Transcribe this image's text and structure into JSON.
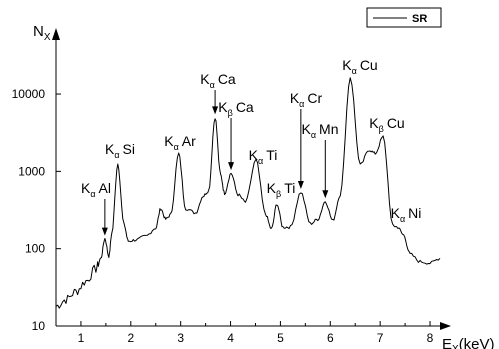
{
  "chart_data": {
    "type": "line",
    "xlabel": {
      "main": "E",
      "sub": "X",
      "unit": "(keV)"
    },
    "ylabel": {
      "main": "N",
      "sub": "X"
    },
    "xlim": [
      0.5,
      8.2
    ],
    "ylim": [
      10,
      50000
    ],
    "yscale": "log",
    "x_ticks": [
      1,
      2,
      3,
      4,
      5,
      6,
      7,
      8
    ],
    "y_ticks": [
      10,
      100,
      1000,
      10000
    ],
    "grid": false,
    "legend": {
      "position": "top-right"
    },
    "series": [
      {
        "name": "SR",
        "color": "#000000",
        "x": [
          0.5,
          0.7,
          0.9,
          1.1,
          1.3,
          1.4,
          1.48,
          1.56,
          1.62,
          1.74,
          1.86,
          1.95,
          2.1,
          2.3,
          2.5,
          2.6,
          2.7,
          2.8,
          2.96,
          3.1,
          3.3,
          3.45,
          3.56,
          3.69,
          3.8,
          3.88,
          4.01,
          4.15,
          4.3,
          4.51,
          4.7,
          4.82,
          4.93,
          5.05,
          5.2,
          5.41,
          5.6,
          5.75,
          5.9,
          6.05,
          6.2,
          6.4,
          6.6,
          6.78,
          6.9,
          7.06,
          7.25,
          7.35,
          7.47,
          7.6,
          7.8,
          8.0,
          8.2
        ],
        "y": [
          18,
          22,
          28,
          38,
          55,
          75,
          135,
          80,
          160,
          1250,
          210,
          125,
          130,
          145,
          185,
          330,
          240,
          275,
          1700,
          330,
          290,
          480,
          560,
          5000,
          900,
          520,
          950,
          500,
          400,
          1400,
          280,
          180,
          380,
          190,
          190,
          540,
          210,
          240,
          410,
          230,
          500,
          16500,
          1200,
          1900,
          1700,
          2800,
          200,
          190,
          150,
          85,
          68,
          65,
          75
        ]
      }
    ],
    "annotations": [
      {
        "main": "K",
        "sub": "α",
        "elem": "Al",
        "x": 1.48,
        "y": 135,
        "arrow": true
      },
      {
        "main": "K",
        "sub": "α",
        "elem": "Si",
        "x": 1.74,
        "y": 1250,
        "arrow": false
      },
      {
        "main": "K",
        "sub": "α",
        "elem": "Ar",
        "x": 2.96,
        "y": 1700,
        "arrow": false
      },
      {
        "main": "K",
        "sub": "α",
        "elem": "Ca",
        "x": 3.69,
        "y": 5000,
        "arrow": true
      },
      {
        "main": "K",
        "sub": "β",
        "elem": "Ca",
        "x": 4.01,
        "y": 950,
        "arrow": true
      },
      {
        "main": "K",
        "sub": "α",
        "elem": "Ti",
        "x": 4.51,
        "y": 1400,
        "arrow": false
      },
      {
        "main": "K",
        "sub": "β",
        "elem": "Ti",
        "x": 4.93,
        "y": 380,
        "arrow": false
      },
      {
        "main": "K",
        "sub": "α",
        "elem": "Cr",
        "x": 5.41,
        "y": 540,
        "arrow": true
      },
      {
        "main": "K",
        "sub": "α",
        "elem": "Mn",
        "x": 5.9,
        "y": 410,
        "arrow": true
      },
      {
        "main": "K",
        "sub": "α",
        "elem": "Cu",
        "x": 6.4,
        "y": 16500,
        "arrow": false
      },
      {
        "main": "K",
        "sub": "β",
        "elem": "Cu",
        "x": 7.06,
        "y": 2800,
        "arrow": false
      },
      {
        "main": "K",
        "sub": "α",
        "elem": "Ni",
        "x": 7.47,
        "y": 150,
        "arrow": false
      }
    ]
  }
}
